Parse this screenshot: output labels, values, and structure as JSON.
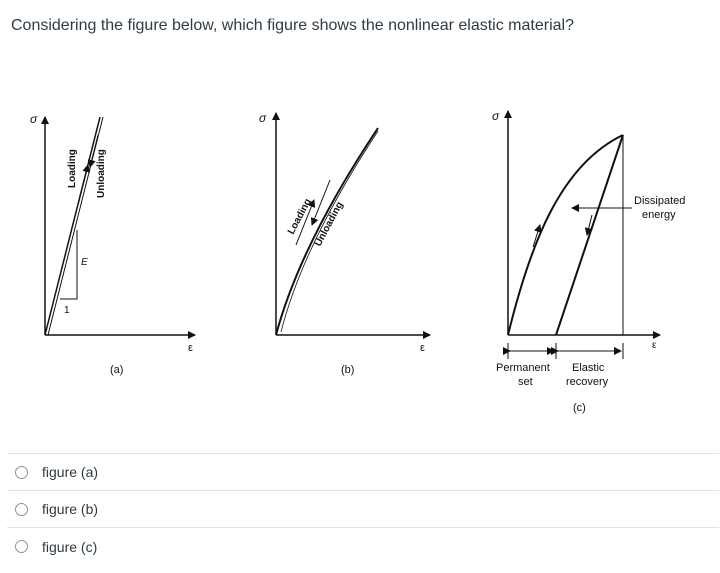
{
  "question": {
    "text": "Considering the figure below, which figure shows the nonlinear elastic material?"
  },
  "figure": {
    "panel_a": {
      "caption": "(a)",
      "y_axis": "σ",
      "x_axis": "ε",
      "loading": "Loading",
      "unloading": "Unloading",
      "modulus": "E",
      "slope_unit": "1"
    },
    "panel_b": {
      "caption": "(b)",
      "y_axis": "σ",
      "x_axis": "ε",
      "loading": "Loading",
      "unloading": "Unloading"
    },
    "panel_c": {
      "caption": "(c)",
      "y_axis": "σ",
      "x_axis": "ε",
      "dissipated_1": "Dissipated",
      "dissipated_2": "energy",
      "permanent_1": "Permanent",
      "permanent_2": "set",
      "elastic_1": "Elastic",
      "elastic_2": "recovery"
    }
  },
  "answers": [
    {
      "label": "figure (a)"
    },
    {
      "label": "figure (b)"
    },
    {
      "label": "figure (c)"
    }
  ]
}
